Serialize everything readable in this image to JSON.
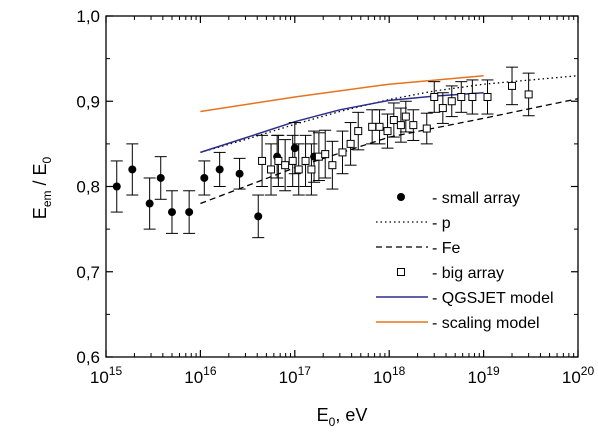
{
  "chart_data": {
    "type": "scatter",
    "title": "",
    "xlabel": {
      "base": "E",
      "sub": "0",
      "rest": ",  eV"
    },
    "ylabel": {
      "base": "E",
      "sub": "em",
      "mid": " / E",
      "sub2": "0"
    },
    "xscale": "log",
    "xlim": [
      1000000000000000.0,
      1e+20
    ],
    "ylim": [
      0.6,
      1.0
    ],
    "x_tick_labels": [
      {
        "base": "10",
        "exp": "15"
      },
      {
        "base": "10",
        "exp": "16"
      },
      {
        "base": "10",
        "exp": "17"
      },
      {
        "base": "10",
        "exp": "18"
      },
      {
        "base": "10",
        "exp": "19"
      },
      {
        "base": "10",
        "exp": "20"
      }
    ],
    "y_tick_labels": [
      "0,6",
      "0,7",
      "0,8",
      "0,9",
      "1,0"
    ],
    "grid": false,
    "legend_position": "right",
    "series": [
      {
        "name": "- small array",
        "kind": "points",
        "marker": "filled-circle",
        "x": [
          1300000000000000.0,
          1900000000000000.0,
          2900000000000000.0,
          3800000000000000.0,
          5000000000000000.0,
          7600000000000000.0,
          1.1e+16,
          1.6e+16,
          2.6e+16,
          4.1e+16,
          6.5e+16,
          1e+17,
          1.6e+17
        ],
        "y": [
          0.8,
          0.82,
          0.78,
          0.81,
          0.77,
          0.77,
          0.81,
          0.82,
          0.815,
          0.765,
          0.835,
          0.845,
          0.835
        ],
        "yerr": [
          0.03,
          0.03,
          0.03,
          0.025,
          0.025,
          0.025,
          0.02,
          0.02,
          0.018,
          0.025,
          0.025,
          0.03,
          0.03
        ]
      },
      {
        "name": "- big array",
        "kind": "points",
        "marker": "open-square",
        "x": [
          4.5e+16,
          5.6e+16,
          6.7e+16,
          7.9e+16,
          9.5e+16,
          1.1e+17,
          1.3e+17,
          1.5e+17,
          1.8e+17,
          2.1e+17,
          2.5e+17,
          3.2e+17,
          3.9e+17,
          4.7e+17,
          6.6e+17,
          7.9e+17,
          9.6e+17,
          1.12e+18,
          1.33e+18,
          1.5e+18,
          1.8e+18,
          2.5e+18,
          3e+18,
          3.7e+18,
          4.6e+18,
          5.8e+18,
          7.6e+18,
          1.1e+19,
          2e+19,
          3e+19
        ],
        "y": [
          0.83,
          0.82,
          0.83,
          0.825,
          0.83,
          0.82,
          0.83,
          0.82,
          0.835,
          0.838,
          0.825,
          0.84,
          0.85,
          0.865,
          0.87,
          0.87,
          0.865,
          0.878,
          0.872,
          0.882,
          0.872,
          0.868,
          0.905,
          0.892,
          0.9,
          0.905,
          0.905,
          0.905,
          0.918,
          0.908
        ],
        "yerr": [
          0.03,
          0.03,
          0.03,
          0.03,
          0.03,
          0.03,
          0.03,
          0.03,
          0.028,
          0.028,
          0.028,
          0.025,
          0.025,
          0.022,
          0.02,
          0.02,
          0.02,
          0.02,
          0.02,
          0.018,
          0.018,
          0.018,
          0.018,
          0.018,
          0.018,
          0.018,
          0.02,
          0.02,
          0.022,
          0.025
        ]
      },
      {
        "name": "p",
        "kind": "line",
        "style": "dotted",
        "color": "#000000",
        "x": [
          1e+16,
          3e+16,
          1e+17,
          3e+17,
          1e+18,
          3e+18,
          1e+19,
          1e+20
        ],
        "y": [
          0.84,
          0.855,
          0.873,
          0.888,
          0.902,
          0.912,
          0.92,
          0.93
        ]
      },
      {
        "name": "Fe",
        "kind": "line",
        "style": "dashed",
        "color": "#000000",
        "x": [
          1e+16,
          1e+17,
          1e+18,
          1e+19,
          1e+20
        ],
        "y": [
          0.78,
          0.822,
          0.858,
          0.88,
          0.903
        ]
      },
      {
        "name": "- QGSJET model",
        "kind": "line",
        "style": "solid",
        "color": "#2b2f8c",
        "x": [
          1e+16,
          3e+16,
          1e+17,
          3e+17,
          1e+18,
          3e+18,
          1e+19
        ],
        "y": [
          0.84,
          0.857,
          0.876,
          0.89,
          0.901,
          0.906,
          0.91
        ]
      },
      {
        "name": "- scaling model",
        "kind": "line",
        "style": "solid",
        "color": "#e8731c",
        "x": [
          1e+16,
          1e+17,
          1e+18,
          1e+19
        ],
        "y": [
          0.888,
          0.905,
          0.92,
          0.93
        ]
      }
    ],
    "legend": [
      {
        "marker": "filled-circle",
        "text": "- small array"
      },
      {
        "marker": "dotted-line",
        "text": "- p",
        "style": "dotted",
        "color": "#000000"
      },
      {
        "marker": "dashed-line",
        "text": "- Fe",
        "style": "dashed",
        "color": "#000000"
      },
      {
        "marker": "open-square",
        "text": "- big array"
      },
      {
        "marker": "solid-line",
        "text": "- QGSJET model",
        "style": "solid",
        "color": "#2b2f8c"
      },
      {
        "marker": "solid-line",
        "text": "- scaling model",
        "style": "solid",
        "color": "#e8731c"
      }
    ]
  }
}
